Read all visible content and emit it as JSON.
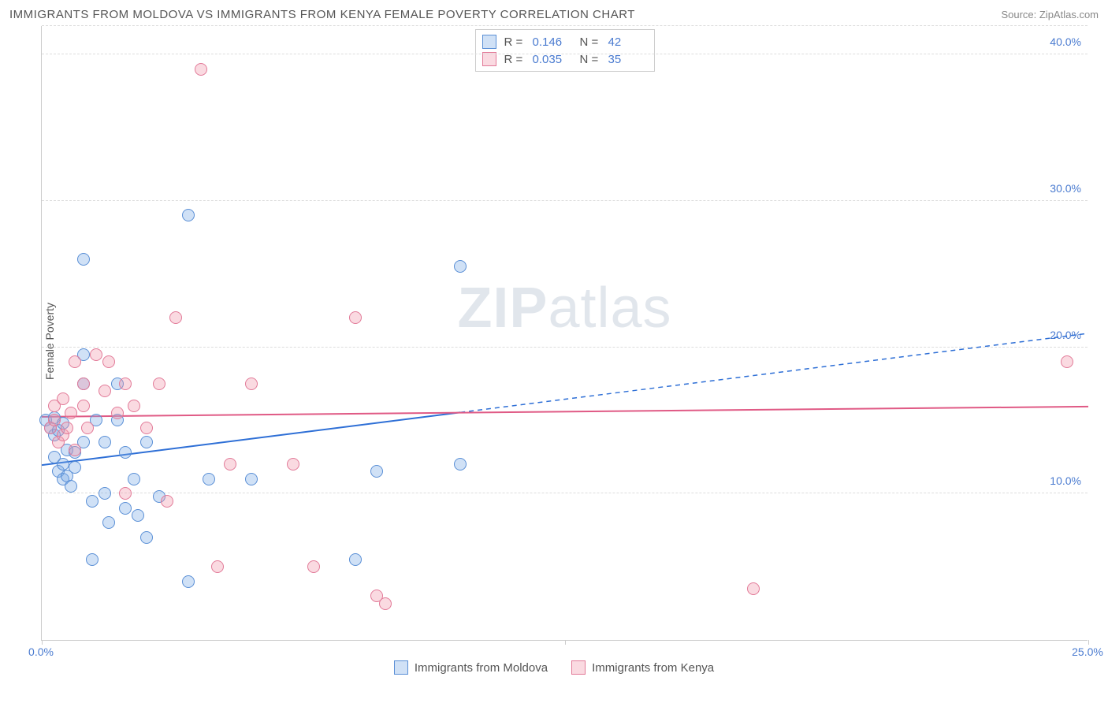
{
  "title": "IMMIGRANTS FROM MOLDOVA VS IMMIGRANTS FROM KENYA FEMALE POVERTY CORRELATION CHART",
  "source": "Source: ZipAtlas.com",
  "ylabel": "Female Poverty",
  "watermark_a": "ZIP",
  "watermark_b": "atlas",
  "chart": {
    "type": "scatter",
    "xlim": [
      0,
      25
    ],
    "ylim": [
      0,
      42
    ],
    "x_ticks": [
      0,
      12.5,
      25
    ],
    "x_tick_labels": [
      "0.0%",
      "",
      "25.0%"
    ],
    "y_gridlines": [
      10,
      20,
      30,
      40
    ],
    "y_tick_labels": [
      "10.0%",
      "20.0%",
      "30.0%",
      "40.0%"
    ],
    "grid_color": "#dddddd",
    "axis_color": "#cccccc",
    "background_color": "#ffffff",
    "tick_label_color": "#4a7bd0",
    "series": [
      {
        "name": "Immigrants from Moldova",
        "color_fill": "rgba(120,170,230,0.35)",
        "color_stroke": "#5a8fd6",
        "marker_radius": 8,
        "R": "0.146",
        "N": "42",
        "trend": {
          "x1": 0,
          "y1": 12.0,
          "x2": 25,
          "y2": 21.0,
          "solid_until_x": 10.0,
          "color": "#2e6fd6",
          "width": 2
        },
        "points": [
          [
            0.1,
            15.0
          ],
          [
            0.2,
            14.5
          ],
          [
            0.3,
            15.2
          ],
          [
            0.3,
            14.0
          ],
          [
            0.4,
            14.3
          ],
          [
            0.5,
            14.8
          ],
          [
            0.4,
            11.5
          ],
          [
            0.5,
            11.0
          ],
          [
            0.6,
            11.2
          ],
          [
            0.7,
            10.5
          ],
          [
            0.8,
            11.8
          ],
          [
            0.3,
            12.5
          ],
          [
            0.5,
            12.0
          ],
          [
            0.6,
            13.0
          ],
          [
            0.8,
            12.8
          ],
          [
            1.0,
            26.0
          ],
          [
            1.0,
            13.5
          ],
          [
            1.0,
            17.5
          ],
          [
            1.0,
            19.5
          ],
          [
            1.2,
            9.5
          ],
          [
            1.3,
            15.0
          ],
          [
            1.5,
            10.0
          ],
          [
            1.5,
            13.5
          ],
          [
            1.6,
            8.0
          ],
          [
            1.8,
            15.0
          ],
          [
            1.8,
            17.5
          ],
          [
            2.0,
            9.0
          ],
          [
            2.0,
            12.8
          ],
          [
            2.2,
            11.0
          ],
          [
            2.3,
            8.5
          ],
          [
            2.5,
            7.0
          ],
          [
            2.5,
            13.5
          ],
          [
            2.8,
            9.8
          ],
          [
            3.5,
            29.0
          ],
          [
            3.5,
            4.0
          ],
          [
            4.0,
            11.0
          ],
          [
            5.0,
            11.0
          ],
          [
            7.5,
            5.5
          ],
          [
            8.0,
            11.5
          ],
          [
            10.0,
            12.0
          ],
          [
            10.0,
            25.5
          ],
          [
            1.2,
            5.5
          ]
        ]
      },
      {
        "name": "Immigrants from Kenya",
        "color_fill": "rgba(240,150,170,0.35)",
        "color_stroke": "#e27a98",
        "marker_radius": 8,
        "R": "0.035",
        "N": "35",
        "trend": {
          "x1": 0,
          "y1": 15.3,
          "x2": 25,
          "y2": 16.0,
          "solid_until_x": 25,
          "color": "#e05a85",
          "width": 2
        },
        "points": [
          [
            0.2,
            14.5
          ],
          [
            0.3,
            15.0
          ],
          [
            0.3,
            16.0
          ],
          [
            0.4,
            13.5
          ],
          [
            0.5,
            14.0
          ],
          [
            0.5,
            16.5
          ],
          [
            0.6,
            14.5
          ],
          [
            0.7,
            15.5
          ],
          [
            0.8,
            13.0
          ],
          [
            0.8,
            19.0
          ],
          [
            1.0,
            16.0
          ],
          [
            1.0,
            17.5
          ],
          [
            1.1,
            14.5
          ],
          [
            1.3,
            19.5
          ],
          [
            1.5,
            17.0
          ],
          [
            1.6,
            19.0
          ],
          [
            1.8,
            15.5
          ],
          [
            2.0,
            17.5
          ],
          [
            2.0,
            10.0
          ],
          [
            2.2,
            16.0
          ],
          [
            2.5,
            14.5
          ],
          [
            2.8,
            17.5
          ],
          [
            3.0,
            9.5
          ],
          [
            3.2,
            22.0
          ],
          [
            3.8,
            39.0
          ],
          [
            4.2,
            5.0
          ],
          [
            4.5,
            12.0
          ],
          [
            5.0,
            17.5
          ],
          [
            6.0,
            12.0
          ],
          [
            6.5,
            5.0
          ],
          [
            7.5,
            22.0
          ],
          [
            8.0,
            3.0
          ],
          [
            8.2,
            2.5
          ],
          [
            17.0,
            3.5
          ],
          [
            24.5,
            19.0
          ]
        ]
      }
    ]
  },
  "legend_top": [
    {
      "series": 0,
      "r_label": "R =",
      "n_label": "N ="
    },
    {
      "series": 1,
      "r_label": "R =",
      "n_label": "N ="
    }
  ],
  "legend_bottom": [
    {
      "series": 0
    },
    {
      "series": 1
    }
  ]
}
